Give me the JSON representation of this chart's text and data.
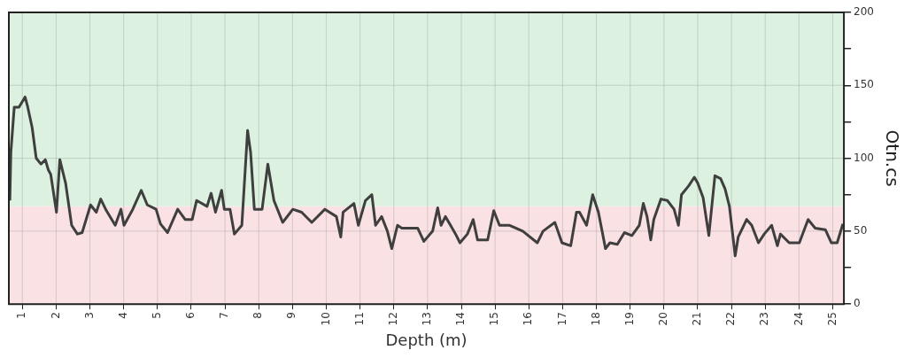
{
  "chart_data": {
    "type": "line",
    "xlabel": "Depth (m)",
    "ylabel": "Otn.cs",
    "xlim": [
      0.6,
      25.33
    ],
    "xticks": [
      1,
      2,
      3,
      4,
      5,
      6,
      7,
      8,
      9,
      10,
      11,
      12,
      13,
      14,
      15,
      16,
      17,
      18,
      19,
      20,
      21,
      22,
      23,
      24,
      25
    ],
    "ylim": [
      0,
      200
    ],
    "yticks": [
      0,
      {
        "value": 25,
        "label": null
      },
      50,
      {
        "value": 75,
        "label": null
      },
      100,
      {
        "value": 125,
        "label": null
      },
      150,
      {
        "value": 175,
        "label": null
      },
      200
    ],
    "grid": true,
    "marker": "none",
    "line_style": "solid",
    "bands": [
      {
        "axis": "y",
        "from": 0,
        "to": 67,
        "color": "#f9e1e4"
      },
      {
        "axis": "y",
        "from": 67,
        "to": 200,
        "color": "#dcf1df"
      }
    ],
    "series": [
      {
        "color": "#3f3f3f",
        "x": [
          0.63,
          0.66,
          0.76,
          0.9,
          1.08,
          1.16,
          1.29,
          1.41,
          1.55,
          1.68,
          1.77,
          1.84,
          2.01,
          2.11,
          2.28,
          2.46,
          2.63,
          2.77,
          3.02,
          3.19,
          3.32,
          3.49,
          3.75,
          3.92,
          4.01,
          4.27,
          4.52,
          4.7,
          4.96,
          5.09,
          5.3,
          5.6,
          5.82,
          6.03,
          6.16,
          6.47,
          6.59,
          6.72,
          6.9,
          6.98,
          7.15,
          7.28,
          7.5,
          7.67,
          7.76,
          7.87,
          8.1,
          8.27,
          8.45,
          8.71,
          9.01,
          9.27,
          9.57,
          9.96,
          10.3,
          10.43,
          10.5,
          10.82,
          10.95,
          11.16,
          11.35,
          11.46,
          11.64,
          11.81,
          11.94,
          12.11,
          12.24,
          12.71,
          12.89,
          13.15,
          13.3,
          13.4,
          13.53,
          13.83,
          13.96,
          14.18,
          14.35,
          14.48,
          14.78,
          14.96,
          15.13,
          15.43,
          15.82,
          16.25,
          16.42,
          16.77,
          16.98,
          17.24,
          17.41,
          17.5,
          17.71,
          17.89,
          18.06,
          18.27,
          18.4,
          18.62,
          18.83,
          19.05,
          19.27,
          19.39,
          19.5,
          19.61,
          19.7,
          19.91,
          20.1,
          20.3,
          20.43,
          20.52,
          20.73,
          20.9,
          21.0,
          21.16,
          21.33,
          21.51,
          21.68,
          21.81,
          21.94,
          22.11,
          22.2,
          22.45,
          22.6,
          22.8,
          22.97,
          23.19,
          23.36,
          23.45,
          23.71,
          24.01,
          24.27,
          24.48,
          24.78,
          24.96,
          25.13,
          25.3
        ],
        "values": [
          71,
          104,
          135,
          135,
          142,
          135,
          121,
          100,
          96,
          99,
          92,
          89,
          63,
          99,
          83,
          54,
          48,
          49,
          68,
          63,
          72,
          64,
          54,
          65,
          54,
          65,
          78,
          68,
          65,
          55,
          49,
          65,
          58,
          58,
          71,
          67,
          76,
          63,
          78,
          65,
          65,
          48,
          54,
          119,
          104,
          65,
          65,
          96,
          71,
          56,
          65,
          63,
          56,
          65,
          60,
          46,
          63,
          69,
          54,
          71,
          75,
          54,
          60,
          50,
          38,
          54,
          52,
          52,
          43,
          50,
          66,
          54,
          60,
          48,
          42,
          48,
          58,
          44,
          44,
          64,
          54,
          54,
          50,
          42,
          50,
          56,
          42,
          40,
          63,
          63,
          54,
          75,
          63,
          38,
          42,
          41,
          49,
          47,
          54,
          69,
          60,
          44,
          58,
          72,
          71,
          65,
          54,
          75,
          81,
          87,
          83,
          73,
          47,
          88,
          86,
          79,
          67,
          33,
          46,
          58,
          54,
          42,
          48,
          54,
          40,
          48,
          42,
          42,
          58,
          52,
          51,
          42,
          42,
          55
        ]
      }
    ]
  }
}
